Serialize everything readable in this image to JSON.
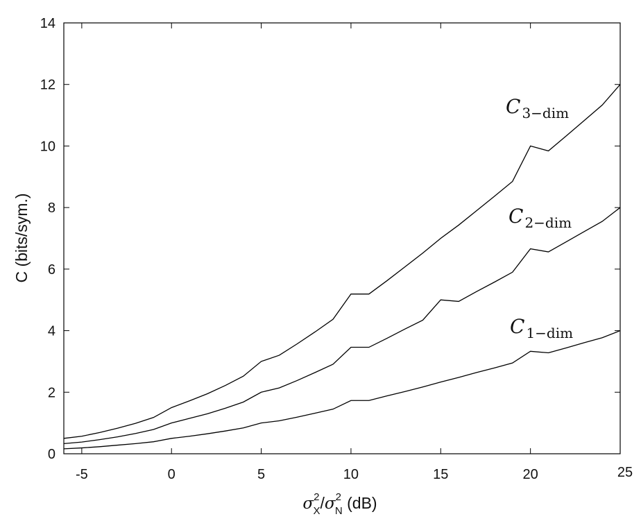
{
  "chart_data": {
    "type": "line",
    "title": "",
    "xlabel": "σX²/σN² (dB)",
    "xlabel_parts": {
      "sigma": "σ",
      "sub_x": "X",
      "sub_n": "N",
      "sup": "2",
      "slash": "/",
      "unit": " (dB)"
    },
    "ylabel": "C (bits/sym.)",
    "xlim": [
      -6,
      25
    ],
    "ylim": [
      0,
      14
    ],
    "xticks": [
      -5,
      0,
      5,
      10,
      15,
      20,
      25
    ],
    "yticks": [
      0,
      2,
      4,
      6,
      8,
      10,
      12,
      14
    ],
    "grid": false,
    "series": [
      {
        "name": "C1-dim",
        "label_main": "C",
        "label_sub": "1−dim",
        "dims": 1,
        "x": [
          -6,
          -5,
          -4,
          -3,
          -2,
          -1,
          0,
          1,
          2,
          3,
          4,
          5,
          6,
          7,
          8,
          9,
          10,
          11,
          12,
          13,
          14,
          15,
          16,
          17,
          18,
          19,
          20,
          21,
          22,
          23,
          24,
          25
        ],
        "values": [
          0.16,
          0.19,
          0.23,
          0.28,
          0.33,
          0.39,
          0.5,
          0.57,
          0.65,
          0.74,
          0.84,
          1.0,
          1.07,
          1.19,
          1.32,
          1.45,
          1.73,
          1.73,
          1.88,
          2.02,
          2.17,
          2.33,
          2.48,
          2.64,
          2.79,
          2.95,
          3.33,
          3.28,
          3.44,
          3.61,
          3.77,
          4.0
        ]
      },
      {
        "name": "C2-dim",
        "label_main": "C",
        "label_sub": "2−dim",
        "dims": 2,
        "x": [
          -6,
          -5,
          -4,
          -3,
          -2,
          -1,
          0,
          1,
          2,
          3,
          4,
          5,
          6,
          7,
          8,
          9,
          10,
          11,
          12,
          13,
          14,
          15,
          16,
          17,
          18,
          19,
          20,
          21,
          22,
          23,
          24,
          25
        ],
        "values": [
          0.33,
          0.38,
          0.46,
          0.55,
          0.66,
          0.79,
          1.0,
          1.15,
          1.3,
          1.48,
          1.68,
          2.0,
          2.14,
          2.38,
          2.64,
          2.91,
          3.46,
          3.46,
          3.75,
          4.05,
          4.34,
          5.0,
          4.95,
          5.27,
          5.58,
          5.9,
          6.66,
          6.56,
          6.89,
          7.22,
          7.55,
          8.0
        ]
      },
      {
        "name": "C3-dim",
        "label_main": "C",
        "label_sub": "3−dim",
        "dims": 3,
        "x": [
          -6,
          -5,
          -4,
          -3,
          -2,
          -1,
          0,
          1,
          2,
          3,
          4,
          5,
          6,
          7,
          8,
          9,
          10,
          11,
          12,
          13,
          14,
          15,
          16,
          17,
          18,
          19,
          20,
          21,
          22,
          23,
          24,
          25
        ],
        "values": [
          0.5,
          0.57,
          0.69,
          0.83,
          0.99,
          1.18,
          1.5,
          1.72,
          1.95,
          2.22,
          2.52,
          3.0,
          3.2,
          3.57,
          3.96,
          4.37,
          5.19,
          5.19,
          5.62,
          6.07,
          6.52,
          7.0,
          7.43,
          7.9,
          8.37,
          8.85,
          10.0,
          9.84,
          10.33,
          10.83,
          11.33,
          12.0
        ]
      }
    ]
  }
}
